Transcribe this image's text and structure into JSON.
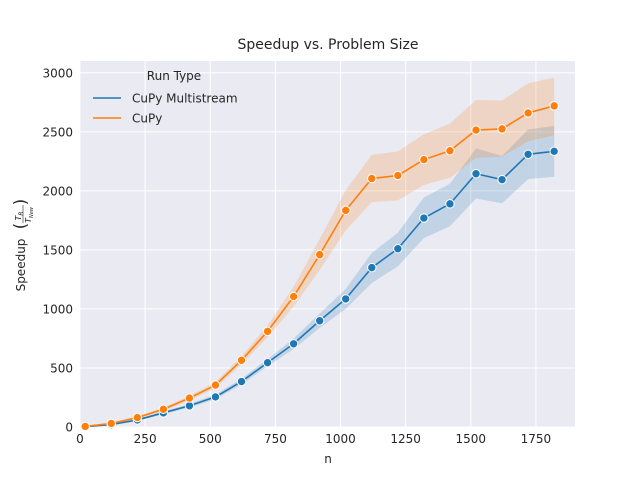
{
  "chart_data": {
    "type": "line",
    "title": "Speedup vs. Problem Size",
    "xlabel": "n",
    "ylabel": "Speedup",
    "ylabel_formula_num": "T",
    "ylabel_formula_num_sub": "R",
    "ylabel_formula_den": "T",
    "ylabel_formula_den_sub": "New",
    "xlim": [
      0,
      1900
    ],
    "ylim": [
      0,
      3100
    ],
    "xticks": [
      0,
      250,
      500,
      750,
      1000,
      1250,
      1500,
      1750
    ],
    "yticks": [
      0,
      500,
      1000,
      1500,
      2000,
      2500,
      3000
    ],
    "grid": true,
    "legend": {
      "title": "Run Type",
      "placement": "top-left"
    },
    "series": [
      {
        "name": "CuPy Multistream",
        "color": "#1f77b4",
        "x": [
          20,
          120,
          220,
          320,
          420,
          520,
          620,
          720,
          820,
          920,
          1020,
          1120,
          1220,
          1320,
          1420,
          1520,
          1620,
          1720,
          1820
        ],
        "y": [
          3,
          20,
          60,
          120,
          180,
          255,
          385,
          545,
          705,
          900,
          1085,
          1350,
          1510,
          1770,
          1890,
          2145,
          2095,
          2310,
          2335
        ],
        "ci_low": [
          2,
          16,
          52,
          108,
          165,
          235,
          360,
          515,
          660,
          840,
          1000,
          1220,
          1360,
          1600,
          1700,
          1935,
          1895,
          2100,
          2120
        ],
        "ci_high": [
          4,
          24,
          68,
          132,
          195,
          275,
          410,
          575,
          750,
          960,
          1170,
          1475,
          1645,
          1945,
          2060,
          2360,
          2295,
          2520,
          2550
        ]
      },
      {
        "name": "CuPy",
        "color": "#ff7f0e",
        "x": [
          20,
          120,
          220,
          320,
          420,
          520,
          620,
          720,
          820,
          920,
          1020,
          1120,
          1220,
          1320,
          1420,
          1520,
          1620,
          1720,
          1820
        ],
        "y": [
          5,
          30,
          80,
          150,
          245,
          355,
          565,
          810,
          1105,
          1460,
          1835,
          2105,
          2130,
          2265,
          2340,
          2515,
          2525,
          2660,
          2720
        ],
        "ci_low": [
          4,
          25,
          70,
          135,
          225,
          330,
          530,
          760,
          1020,
          1330,
          1665,
          1905,
          1920,
          2050,
          2110,
          2280,
          2290,
          2420,
          2470
        ],
        "ci_high": [
          6,
          35,
          90,
          165,
          265,
          380,
          600,
          860,
          1190,
          1590,
          2005,
          2305,
          2335,
          2480,
          2570,
          2770,
          2765,
          2910,
          2960
        ]
      }
    ]
  }
}
